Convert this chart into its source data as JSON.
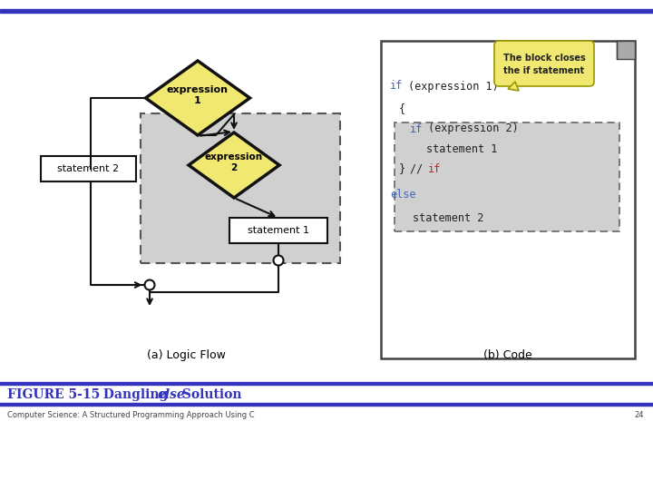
{
  "bg_color": "#ffffff",
  "bar_color": "#3333bb",
  "title_color": "#3333bb",
  "yellow_fill": "#f0e870",
  "gray_fill": "#d0d0d0",
  "code_blue": "#4466bb",
  "code_red": "#cc2222",
  "code_black": "#222222",
  "diamond1_label": "expression\n1",
  "diamond2_label": "expression\n2",
  "stmt1_label": "statement 1",
  "stmt2_label": "statement 2",
  "caption_a": "(a) Logic Flow",
  "caption_b": "(b) Code",
  "callout_text1": "The block closes",
  "callout_text2": "the if statement",
  "figure_label": "FIGURE 5-15",
  "dangling": "  Dangling ",
  "else_text": "else",
  "solution": " Solution",
  "subtitle": "Computer Science: A Structured Programming Approach Using C",
  "page_num": "24"
}
